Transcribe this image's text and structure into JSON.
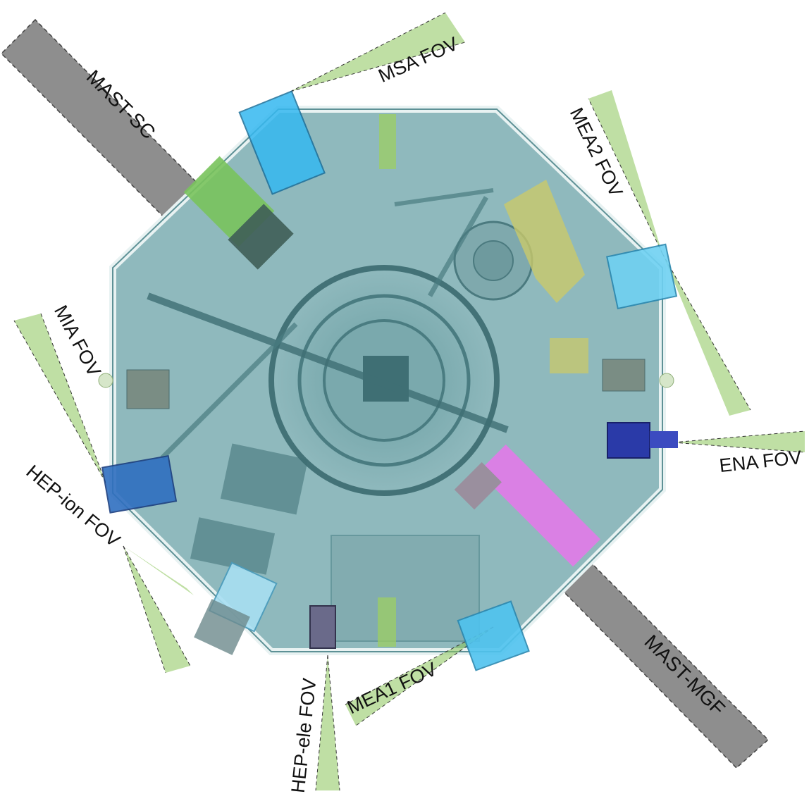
{
  "masts": {
    "sc": "MAST-SC",
    "mgf": "MAST-MGF"
  },
  "fov_labels": {
    "msa": "MSA FOV",
    "mea2": "MEA2 FOV",
    "mia": "MIA FOV",
    "ena": "ENA FOV",
    "hep_ion": "HEP-ion FOV",
    "hep_ele": "HEP-ele FOV",
    "mea1": "MEA1 FOV"
  },
  "colors": {
    "body_fill": "#8fb9bd",
    "body_edge": "#5e9196",
    "mast_fill": "#8e8e8e",
    "fov_green": "#7ab84a",
    "sensor_cyan": "#35b8f0",
    "sensor_blue": "#2a3aa8",
    "magenta": "#e27ae8",
    "yellow": "#c9c96a"
  }
}
